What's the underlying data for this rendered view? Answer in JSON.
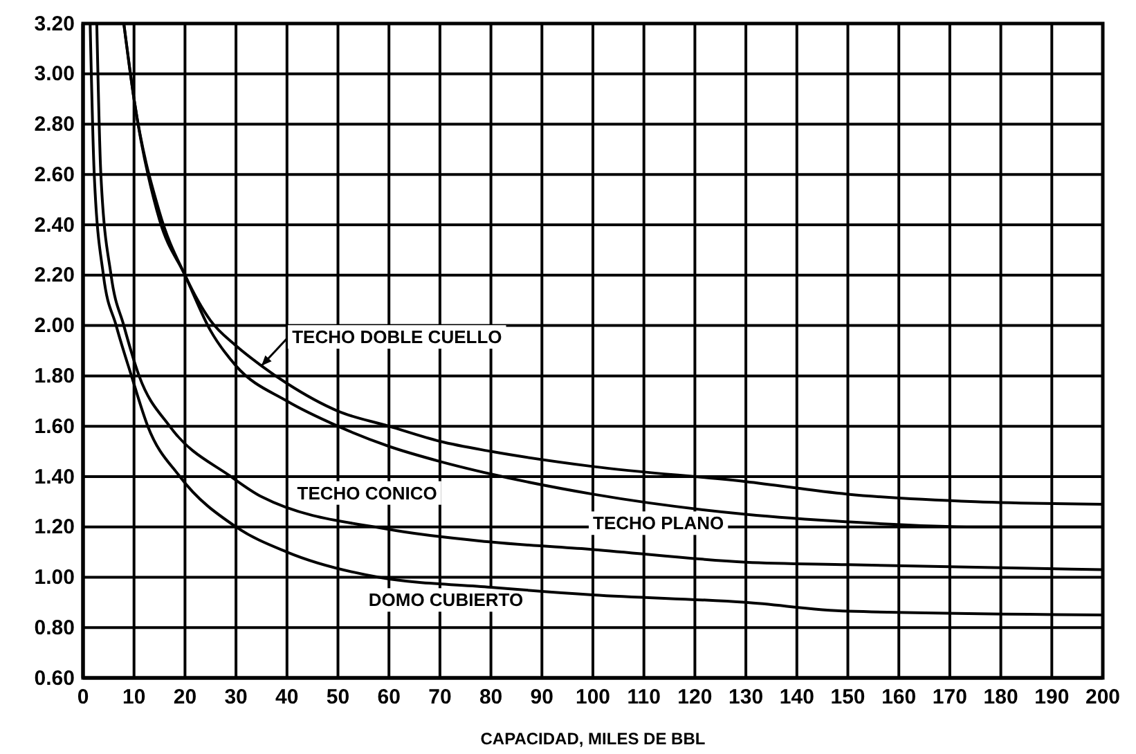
{
  "chart_data": {
    "type": "line",
    "xlabel": "CAPACIDAD, MILES DE BBL",
    "xlim": [
      0,
      200
    ],
    "ylim": [
      0.6,
      3.2
    ],
    "xticks": [
      0,
      10,
      20,
      30,
      40,
      50,
      60,
      70,
      80,
      90,
      100,
      110,
      120,
      130,
      140,
      150,
      160,
      170,
      180,
      190,
      200
    ],
    "yticks": [
      {
        "value": 0.6,
        "label": "0.60"
      },
      {
        "value": 0.8,
        "label": "0.80"
      },
      {
        "value": 1.0,
        "label": "1.00"
      },
      {
        "value": 1.2,
        "label": "1.20"
      },
      {
        "value": 1.4,
        "label": "1.40"
      },
      {
        "value": 1.6,
        "label": "1.60"
      },
      {
        "value": 1.8,
        "label": "1.80"
      },
      {
        "value": 2.0,
        "label": "2.00"
      },
      {
        "value": 2.2,
        "label": "2.20"
      },
      {
        "value": 2.4,
        "label": "2.40"
      },
      {
        "value": 2.6,
        "label": "2.60"
      },
      {
        "value": 2.8,
        "label": "2.80"
      },
      {
        "value": 3.0,
        "label": "3.00"
      },
      {
        "value": 3.2,
        "label": "3.20"
      }
    ],
    "grid": true,
    "marker": "none",
    "line_style": "solid",
    "series": [
      {
        "name": "TECHO DOBLE CUELLO",
        "color": "#000000",
        "x": [
          8,
          10,
          15,
          20,
          25,
          30,
          35,
          40,
          50,
          60,
          70,
          80,
          100,
          130,
          150,
          175,
          200
        ],
        "values": [
          3.2,
          2.9,
          2.45,
          2.2,
          2.02,
          1.92,
          1.84,
          1.77,
          1.66,
          1.6,
          1.54,
          1.5,
          1.44,
          1.38,
          1.33,
          1.3,
          1.29
        ]
      },
      {
        "name": "TECHO PLANO",
        "color": "#000000",
        "x": [
          8,
          10,
          15,
          20,
          25,
          30,
          40,
          50,
          60,
          70,
          80,
          100,
          130,
          150,
          175,
          200
        ],
        "values": [
          3.2,
          2.9,
          2.42,
          2.2,
          1.98,
          1.84,
          1.7,
          1.6,
          1.52,
          1.46,
          1.41,
          1.33,
          1.25,
          1.22,
          1.2,
          1.2
        ]
      },
      {
        "name": "TECHO CONICO",
        "color": "#000000",
        "x": [
          2.7,
          3.5,
          5.5,
          8,
          11,
          17,
          29,
          35,
          60,
          80,
          100,
          130,
          150,
          200
        ],
        "values": [
          3.2,
          2.6,
          2.2,
          2.0,
          1.8,
          1.6,
          1.4,
          1.32,
          1.19,
          1.14,
          1.11,
          1.06,
          1.05,
          1.03
        ]
      },
      {
        "name": "DOMO CUBIERTO",
        "color": "#000000",
        "x": [
          1.4,
          2.2,
          4,
          6.5,
          9.5,
          12.7,
          19,
          30,
          40,
          58,
          80,
          100,
          130,
          150,
          200
        ],
        "values": [
          3.2,
          2.6,
          2.2,
          2.0,
          1.8,
          1.6,
          1.4,
          1.2,
          1.1,
          1.0,
          0.96,
          0.93,
          0.9,
          0.865,
          0.85
        ]
      }
    ]
  }
}
